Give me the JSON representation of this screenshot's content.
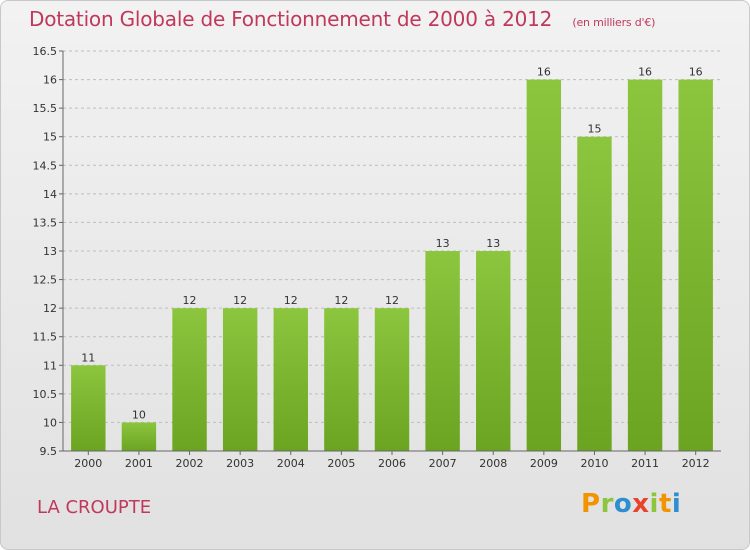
{
  "chart_data": {
    "type": "bar",
    "title": "Dotation Globale de Fonctionnement de 2000 à 2012",
    "unit_note": "(en milliers d'€)",
    "categories": [
      "2000",
      "2001",
      "2002",
      "2003",
      "2004",
      "2005",
      "2006",
      "2007",
      "2008",
      "2009",
      "2010",
      "2011",
      "2012"
    ],
    "values": [
      11,
      10,
      12,
      12,
      12,
      12,
      12,
      13,
      13,
      16,
      15,
      16,
      16
    ],
    "data_labels": [
      "11",
      "10",
      "12",
      "12",
      "12",
      "12",
      "12",
      "13",
      "13",
      "16",
      "15",
      "16",
      "16"
    ],
    "ylim": [
      9.5,
      16.5
    ],
    "yticks": [
      9.5,
      10,
      10.5,
      11,
      11.5,
      12,
      12.5,
      13,
      13.5,
      14,
      14.5,
      15,
      15.5,
      16,
      16.5
    ],
    "ytick_labels": [
      "9.5",
      "10",
      "10.5",
      "11",
      "11.5",
      "12",
      "12.5",
      "13",
      "13.5",
      "14",
      "14.5",
      "15",
      "15.5",
      "16",
      "16.5"
    ],
    "grid": true,
    "bar_color": "#8cc63f",
    "bar_color_dark": "#6aa421"
  },
  "footer": {
    "commune": "LA CROUPTE",
    "logo": {
      "p": "P",
      "r": "r",
      "o": "o",
      "x": "x",
      "i": "i",
      "t": "t",
      "i2": "i"
    }
  },
  "colors": {
    "title": "#c0395c",
    "logo_p": "#f29400",
    "logo_r": "#8cc63f",
    "logo_o": "#2d8fcf",
    "logo_x": "#e8432b",
    "logo_i": "#8cc63f",
    "logo_t": "#f29400",
    "logo_i2": "#2d8fcf"
  }
}
